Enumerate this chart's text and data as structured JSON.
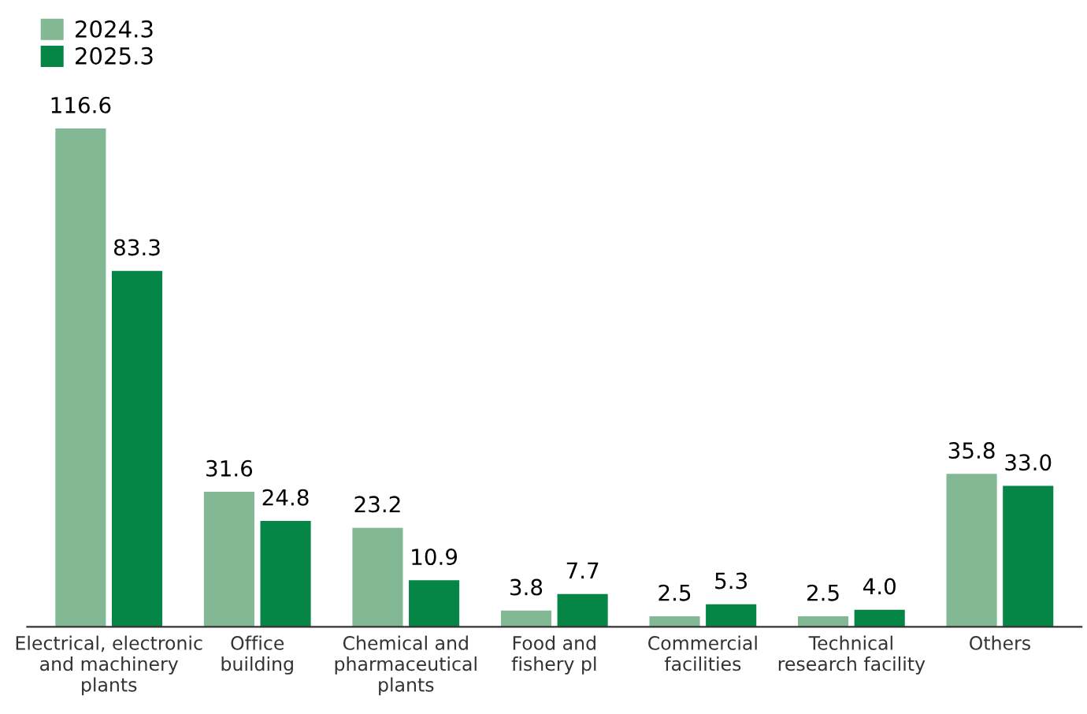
{
  "chart_data": {
    "type": "bar",
    "categories": [
      "Electrical, electronic\nand machinery\nplants",
      "Office\nbuilding",
      "Chemical and\npharmaceutical\nplants",
      "Food and\nfishery pl",
      "Commercial\nfacilities",
      "Technical\nresearch facility",
      "Others"
    ],
    "series": [
      {
        "name": "2024.3",
        "color": "#82b894",
        "values": [
          116.6,
          31.6,
          23.2,
          3.8,
          2.5,
          2.5,
          35.8
        ],
        "value_labels": [
          "116.6",
          "31.6",
          "23.2",
          "3.8",
          "2.5",
          "2.5",
          "35.8"
        ]
      },
      {
        "name": "2025.3",
        "color": "#058646",
        "values": [
          83.3,
          24.8,
          10.9,
          7.7,
          5.3,
          4.0,
          33.0
        ],
        "value_labels": [
          "83.3",
          "24.8",
          "10.9",
          "7.7",
          "5.3",
          "4.0",
          "33.0"
        ]
      }
    ],
    "legend": "top left",
    "grid": false
  }
}
